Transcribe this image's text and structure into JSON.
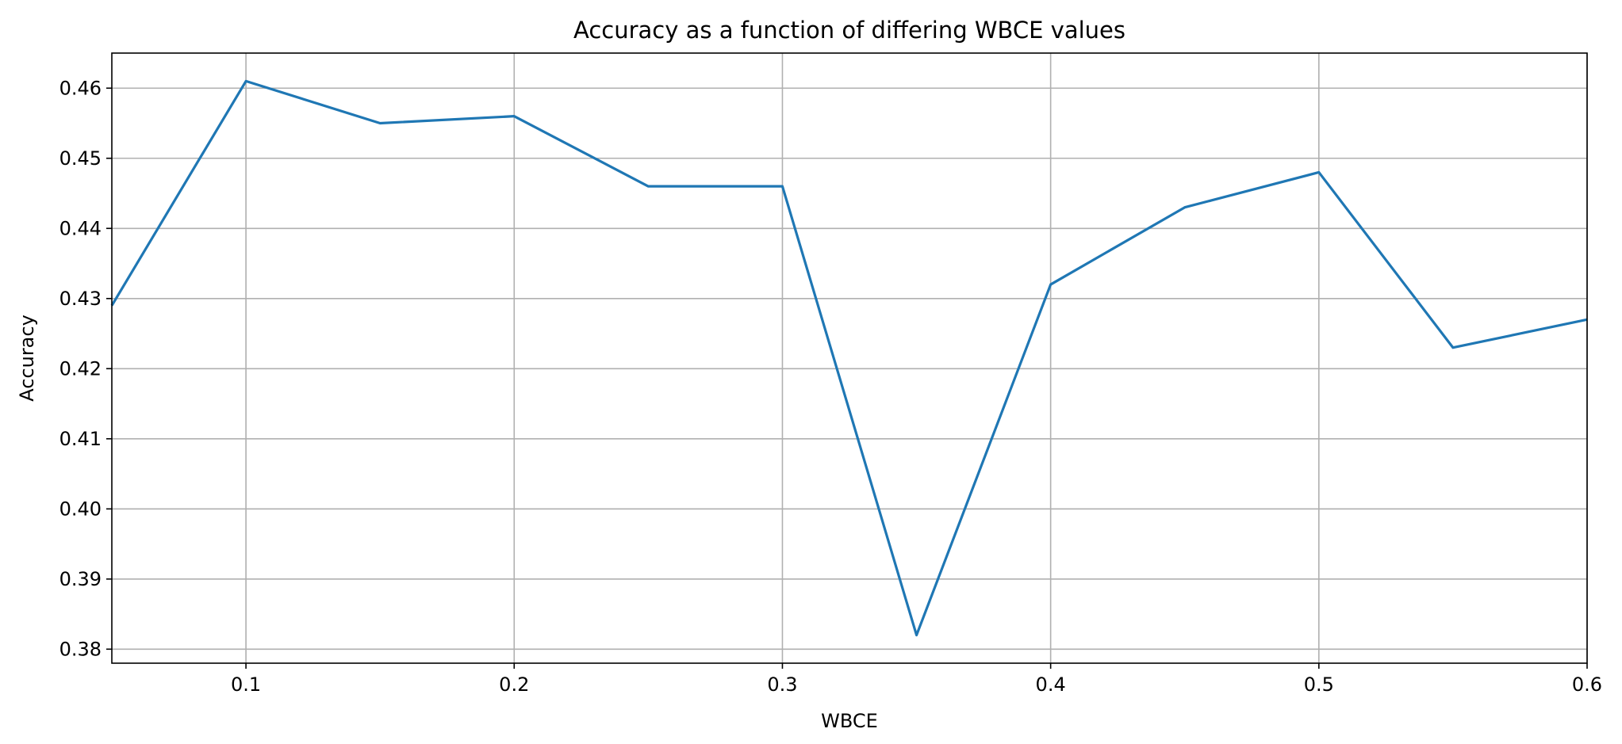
{
  "colors": {
    "line": "#1f77b4",
    "grid": "#b0b0b0",
    "axes": "#000000",
    "background": "#ffffff"
  },
  "chart_data": {
    "type": "line",
    "title": "Accuracy as a function of differing WBCE values",
    "xlabel": "WBCE",
    "ylabel": "Accuracy",
    "xlim": [
      0.05,
      0.6
    ],
    "ylim": [
      0.378,
      0.465
    ],
    "grid": true,
    "x_ticks": [
      0.1,
      0.2,
      0.3,
      0.4,
      0.5,
      0.6
    ],
    "x_tick_labels": [
      "0.1",
      "0.2",
      "0.3",
      "0.4",
      "0.5",
      "0.6"
    ],
    "y_ticks": [
      0.38,
      0.39,
      0.4,
      0.41,
      0.42,
      0.43,
      0.44,
      0.45,
      0.46
    ],
    "y_tick_labels": [
      "0.38",
      "0.39",
      "0.40",
      "0.41",
      "0.42",
      "0.43",
      "0.44",
      "0.45",
      "0.46"
    ],
    "series": [
      {
        "x": [
          0.05,
          0.1,
          0.15,
          0.2,
          0.25,
          0.3,
          0.35,
          0.4,
          0.45,
          0.5,
          0.55,
          0.6
        ],
        "values": [
          0.429,
          0.461,
          0.455,
          0.456,
          0.446,
          0.446,
          0.382,
          0.432,
          0.443,
          0.448,
          0.423,
          0.427
        ]
      }
    ]
  }
}
